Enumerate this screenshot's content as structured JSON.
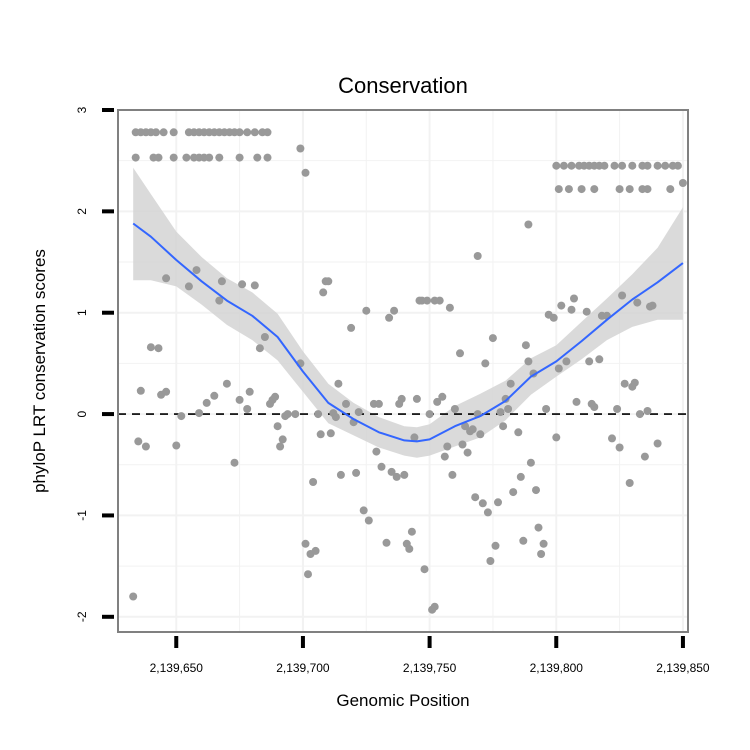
{
  "chart_data": {
    "type": "scatter",
    "title": "Conservation",
    "xlabel": "Genomic Position",
    "ylabel": "phyloP LRT conservation scores",
    "xlim": [
      2139627,
      2139852
    ],
    "ylim": [
      -2.15,
      3.0
    ],
    "xticks": [
      2139650,
      2139700,
      2139750,
      2139800,
      2139850
    ],
    "xtick_labels": [
      "2,139,650",
      "2,139,700",
      "2,139,750",
      "2,139,800",
      "2,139,850"
    ],
    "yticks": [
      -2,
      -1,
      0,
      1,
      2,
      3
    ],
    "ytick_labels": [
      "-2",
      "-1",
      "0",
      "1",
      "2",
      "3"
    ],
    "grid": true,
    "reference_line": {
      "y": 0,
      "style": "dashed"
    },
    "colors": {
      "points": "#999999",
      "smooth_line": "#3366ff",
      "confidence_band": "#d3d3d3",
      "grid": "#f2f2f2",
      "frame": "#808080"
    },
    "points": [
      [
        2139634,
        2.78
      ],
      [
        2139636,
        2.78
      ],
      [
        2139638,
        2.78
      ],
      [
        2139640,
        2.78
      ],
      [
        2139642,
        2.78
      ],
      [
        2139645,
        2.78
      ],
      [
        2139649,
        2.78
      ],
      [
        2139655,
        2.78
      ],
      [
        2139657,
        2.78
      ],
      [
        2139659,
        2.78
      ],
      [
        2139661,
        2.78
      ],
      [
        2139663,
        2.78
      ],
      [
        2139665,
        2.78
      ],
      [
        2139667,
        2.78
      ],
      [
        2139669,
        2.78
      ],
      [
        2139671,
        2.78
      ],
      [
        2139673,
        2.78
      ],
      [
        2139675,
        2.78
      ],
      [
        2139678,
        2.78
      ],
      [
        2139681,
        2.78
      ],
      [
        2139684,
        2.78
      ],
      [
        2139686,
        2.78
      ],
      [
        2139634,
        2.53
      ],
      [
        2139641,
        2.53
      ],
      [
        2139643,
        2.53
      ],
      [
        2139649,
        2.53
      ],
      [
        2139654,
        2.53
      ],
      [
        2139657,
        2.53
      ],
      [
        2139659,
        2.53
      ],
      [
        2139661,
        2.53
      ],
      [
        2139663,
        2.53
      ],
      [
        2139667,
        2.53
      ],
      [
        2139675,
        2.53
      ],
      [
        2139682,
        2.53
      ],
      [
        2139686,
        2.53
      ],
      [
        2139699,
        2.62
      ],
      [
        2139701,
        2.38
      ],
      [
        2139800,
        2.45
      ],
      [
        2139803,
        2.45
      ],
      [
        2139806,
        2.45
      ],
      [
        2139809,
        2.45
      ],
      [
        2139811,
        2.45
      ],
      [
        2139813,
        2.45
      ],
      [
        2139815,
        2.45
      ],
      [
        2139817,
        2.45
      ],
      [
        2139819,
        2.45
      ],
      [
        2139823,
        2.45
      ],
      [
        2139826,
        2.45
      ],
      [
        2139830,
        2.45
      ],
      [
        2139834,
        2.45
      ],
      [
        2139836,
        2.45
      ],
      [
        2139840,
        2.45
      ],
      [
        2139843,
        2.45
      ],
      [
        2139846,
        2.45
      ],
      [
        2139848,
        2.45
      ],
      [
        2139801,
        2.22
      ],
      [
        2139805,
        2.22
      ],
      [
        2139810,
        2.22
      ],
      [
        2139815,
        2.22
      ],
      [
        2139825,
        2.22
      ],
      [
        2139829,
        2.22
      ],
      [
        2139834,
        2.22
      ],
      [
        2139836,
        2.22
      ],
      [
        2139845,
        2.22
      ],
      [
        2139850,
        2.28
      ],
      [
        2139789,
        1.87
      ],
      [
        2139769,
        1.56
      ],
      [
        2139633,
        -1.8
      ],
      [
        2139635,
        -0.27
      ],
      [
        2139636,
        0.23
      ],
      [
        2139638,
        -0.32
      ],
      [
        2139640,
        0.66
      ],
      [
        2139643,
        0.65
      ],
      [
        2139644,
        0.19
      ],
      [
        2139646,
        0.22
      ],
      [
        2139646,
        1.34
      ],
      [
        2139650,
        -0.31
      ],
      [
        2139652,
        -0.02
      ],
      [
        2139655,
        1.26
      ],
      [
        2139658,
        1.42
      ],
      [
        2139659,
        0.01
      ],
      [
        2139662,
        0.11
      ],
      [
        2139665,
        0.18
      ],
      [
        2139667,
        1.12
      ],
      [
        2139668,
        1.31
      ],
      [
        2139670,
        0.3
      ],
      [
        2139673,
        -0.48
      ],
      [
        2139675,
        0.14
      ],
      [
        2139676,
        1.28
      ],
      [
        2139678,
        0.05
      ],
      [
        2139679,
        0.22
      ],
      [
        2139681,
        1.27
      ],
      [
        2139683,
        0.65
      ],
      [
        2139685,
        0.76
      ],
      [
        2139687,
        0.1
      ],
      [
        2139688,
        0.14
      ],
      [
        2139689,
        0.17
      ],
      [
        2139690,
        -0.12
      ],
      [
        2139691,
        -0.32
      ],
      [
        2139692,
        -0.25
      ],
      [
        2139693,
        -0.02
      ],
      [
        2139694,
        0.0
      ],
      [
        2139697,
        0.0
      ],
      [
        2139699,
        0.5
      ],
      [
        2139701,
        -1.28
      ],
      [
        2139702,
        -1.58
      ],
      [
        2139703,
        -1.38
      ],
      [
        2139704,
        -0.67
      ],
      [
        2139705,
        -1.35
      ],
      [
        2139706,
        0.0
      ],
      [
        2139707,
        -0.2
      ],
      [
        2139708,
        1.2
      ],
      [
        2139709,
        1.31
      ],
      [
        2139710,
        1.31
      ],
      [
        2139711,
        -0.19
      ],
      [
        2139712,
        0.01
      ],
      [
        2139713,
        -0.03
      ],
      [
        2139714,
        0.3
      ],
      [
        2139715,
        -0.6
      ],
      [
        2139717,
        0.1
      ],
      [
        2139719,
        0.85
      ],
      [
        2139720,
        -0.08
      ],
      [
        2139721,
        -0.58
      ],
      [
        2139722,
        0.02
      ],
      [
        2139724,
        -0.95
      ],
      [
        2139725,
        1.02
      ],
      [
        2139726,
        -1.05
      ],
      [
        2139728,
        0.1
      ],
      [
        2139729,
        -0.37
      ],
      [
        2139730,
        0.1
      ],
      [
        2139731,
        -0.52
      ],
      [
        2139733,
        -1.27
      ],
      [
        2139734,
        0.95
      ],
      [
        2139735,
        -0.57
      ],
      [
        2139736,
        1.02
      ],
      [
        2139737,
        -0.62
      ],
      [
        2139738,
        0.1
      ],
      [
        2139739,
        0.15
      ],
      [
        2139740,
        -0.6
      ],
      [
        2139741,
        -1.28
      ],
      [
        2139742,
        -1.33
      ],
      [
        2139743,
        -1.16
      ],
      [
        2139744,
        -0.23
      ],
      [
        2139745,
        0.15
      ],
      [
        2139746,
        1.12
      ],
      [
        2139747,
        1.12
      ],
      [
        2139748,
        -1.53
      ],
      [
        2139749,
        1.12
      ],
      [
        2139750,
        0.0
      ],
      [
        2139751,
        -1.93
      ],
      [
        2139752,
        -1.9
      ],
      [
        2139752,
        1.12
      ],
      [
        2139753,
        0.12
      ],
      [
        2139754,
        1.12
      ],
      [
        2139755,
        0.17
      ],
      [
        2139756,
        -0.42
      ],
      [
        2139757,
        -0.32
      ],
      [
        2139758,
        1.05
      ],
      [
        2139759,
        -0.6
      ],
      [
        2139760,
        0.05
      ],
      [
        2139762,
        0.6
      ],
      [
        2139763,
        -0.3
      ],
      [
        2139764,
        -0.12
      ],
      [
        2139765,
        -0.38
      ],
      [
        2139766,
        -0.17
      ],
      [
        2139767,
        -0.15
      ],
      [
        2139768,
        -0.82
      ],
      [
        2139769,
        0.0
      ],
      [
        2139770,
        -0.2
      ],
      [
        2139771,
        -0.88
      ],
      [
        2139772,
        0.5
      ],
      [
        2139773,
        -0.97
      ],
      [
        2139774,
        -1.45
      ],
      [
        2139775,
        0.75
      ],
      [
        2139776,
        -1.3
      ],
      [
        2139777,
        -0.87
      ],
      [
        2139778,
        0.02
      ],
      [
        2139779,
        -0.12
      ],
      [
        2139780,
        0.15
      ],
      [
        2139781,
        0.05
      ],
      [
        2139782,
        0.3
      ],
      [
        2139783,
        -0.77
      ],
      [
        2139785,
        -0.18
      ],
      [
        2139786,
        -0.62
      ],
      [
        2139787,
        -1.25
      ],
      [
        2139788,
        0.68
      ],
      [
        2139789,
        0.52
      ],
      [
        2139790,
        -0.48
      ],
      [
        2139791,
        0.4
      ],
      [
        2139792,
        -0.75
      ],
      [
        2139793,
        -1.12
      ],
      [
        2139794,
        -1.38
      ],
      [
        2139795,
        -1.28
      ],
      [
        2139796,
        0.05
      ],
      [
        2139797,
        0.98
      ],
      [
        2139799,
        0.95
      ],
      [
        2139800,
        -0.23
      ],
      [
        2139801,
        0.45
      ],
      [
        2139802,
        1.07
      ],
      [
        2139804,
        0.52
      ],
      [
        2139806,
        1.03
      ],
      [
        2139807,
        1.14
      ],
      [
        2139808,
        0.12
      ],
      [
        2139812,
        1.01
      ],
      [
        2139813,
        0.52
      ],
      [
        2139814,
        0.1
      ],
      [
        2139815,
        0.07
      ],
      [
        2139817,
        0.54
      ],
      [
        2139818,
        0.97
      ],
      [
        2139820,
        0.97
      ],
      [
        2139822,
        -0.24
      ],
      [
        2139824,
        0.05
      ],
      [
        2139825,
        -0.33
      ],
      [
        2139826,
        1.17
      ],
      [
        2139827,
        0.3
      ],
      [
        2139829,
        -0.68
      ],
      [
        2139830,
        0.27
      ],
      [
        2139831,
        0.31
      ],
      [
        2139832,
        1.1
      ],
      [
        2139833,
        0.0
      ],
      [
        2139835,
        -0.42
      ],
      [
        2139836,
        0.03
      ],
      [
        2139837,
        1.06
      ],
      [
        2139838,
        1.07
      ],
      [
        2139840,
        -0.29
      ]
    ],
    "smooth_fit": {
      "x": [
        2139633,
        2139640,
        2139650,
        2139660,
        2139670,
        2139680,
        2139690,
        2139700,
        2139710,
        2139720,
        2139730,
        2139740,
        2139745,
        2139750,
        2139760,
        2139770,
        2139780,
        2139790,
        2139800,
        2139810,
        2139820,
        2139830,
        2139840,
        2139850
      ],
      "y": [
        1.88,
        1.75,
        1.52,
        1.31,
        1.12,
        0.97,
        0.76,
        0.42,
        0.11,
        -0.05,
        -0.18,
        -0.26,
        -0.27,
        -0.25,
        -0.12,
        -0.02,
        0.13,
        0.37,
        0.52,
        0.72,
        0.93,
        1.13,
        1.3,
        1.49
      ],
      "lower": [
        1.32,
        1.32,
        1.26,
        1.08,
        0.88,
        0.73,
        0.53,
        0.22,
        -0.09,
        -0.21,
        -0.33,
        -0.41,
        -0.43,
        -0.41,
        -0.32,
        -0.23,
        -0.06,
        0.19,
        0.37,
        0.54,
        0.73,
        0.86,
        0.93,
        0.93
      ],
      "upper": [
        2.43,
        2.17,
        1.8,
        1.55,
        1.34,
        1.2,
        0.99,
        0.62,
        0.3,
        0.11,
        -0.03,
        -0.12,
        -0.13,
        -0.1,
        0.08,
        0.2,
        0.33,
        0.55,
        0.68,
        0.91,
        1.14,
        1.38,
        1.64,
        2.04
      ]
    }
  }
}
